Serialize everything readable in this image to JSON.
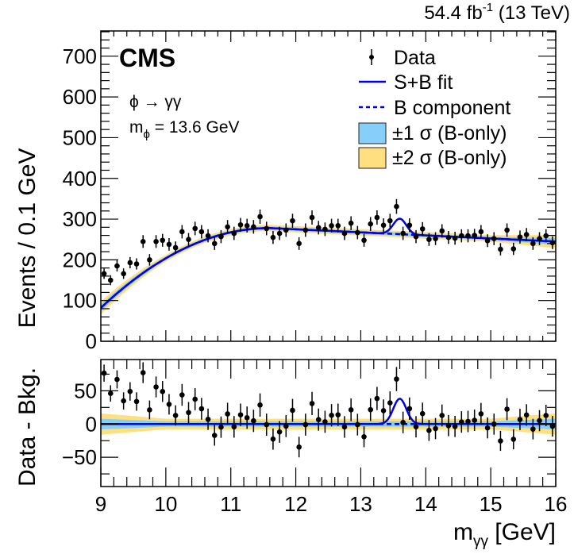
{
  "chart_data": [
    {
      "type": "scatter",
      "panel": "main",
      "title": "",
      "xlabel": "m_γγ [GeV]",
      "ylabel": "Events / 0.1 GeV",
      "xlim": [
        9,
        16
      ],
      "ylim": [
        0,
        762
      ],
      "yticks": [
        0,
        100,
        200,
        300,
        400,
        500,
        600,
        700
      ],
      "ytick_labels": [
        "0",
        "100",
        "200",
        "300",
        "400",
        "500",
        "600",
        "700"
      ],
      "grid": false,
      "legend_position": "top-right",
      "legend": [
        {
          "label": "Data",
          "kind": "marker"
        },
        {
          "label": "S+B fit",
          "kind": "solid-line"
        },
        {
          "label": "B component",
          "kind": "dashed-line"
        },
        {
          "label": "±1 σ (B-only)",
          "kind": "box"
        },
        {
          "label": "±2 σ (B-only)",
          "kind": "box"
        }
      ],
      "annotations": {
        "experiment": "CMS",
        "process": "ϕ → γγ",
        "mass_label": "m",
        "mass_sub": "ϕ",
        "mass_value": " = 13.6 GeV",
        "lumi_main": "54.4 fb",
        "lumi_sup": "-1",
        "lumi_energy": " (13 TeV)"
      },
      "x": [
        9.05,
        9.15,
        9.25,
        9.35,
        9.45,
        9.55,
        9.65,
        9.75,
        9.85,
        9.95,
        10.05,
        10.15,
        10.25,
        10.35,
        10.45,
        10.55,
        10.65,
        10.75,
        10.85,
        10.95,
        11.05,
        11.15,
        11.25,
        11.35,
        11.45,
        11.55,
        11.65,
        11.75,
        11.85,
        11.95,
        12.05,
        12.15,
        12.25,
        12.35,
        12.45,
        12.55,
        12.65,
        12.75,
        12.85,
        12.95,
        13.05,
        13.15,
        13.25,
        13.35,
        13.45,
        13.55,
        13.65,
        13.75,
        13.85,
        13.95,
        14.05,
        14.15,
        14.25,
        14.35,
        14.45,
        14.55,
        14.65,
        14.75,
        14.85,
        14.95,
        15.05,
        15.15,
        15.25,
        15.35,
        15.45,
        15.55,
        15.65,
        15.75,
        15.85,
        15.95
      ],
      "series": [
        {
          "name": "Data",
          "values": [
            166,
            150,
            185,
            166,
            193,
            190,
            245,
            200,
            245,
            248,
            238,
            230,
            269,
            250,
            277,
            269,
            259,
            240,
            257,
            281,
            265,
            286,
            284,
            281,
            306,
            277,
            255,
            265,
            273,
            296,
            240,
            273,
            304,
            279,
            275,
            284,
            284,
            265,
            290,
            267,
            248,
            288,
            304,
            285,
            296,
            331,
            265,
            285,
            257,
            276,
            250,
            252,
            271,
            255,
            253,
            259,
            259,
            260,
            269,
            247,
            252,
            226,
            273,
            227,
            256,
            262,
            240,
            252,
            259,
            242
          ]
        },
        {
          "name": "B component",
          "params": {
            "a": 278,
            "x0": 11.6,
            "k_left": 29,
            "slope_right": -7.5
          }
        },
        {
          "name": "S+B fit",
          "signal": {
            "mean": 13.6,
            "sigma": 0.1,
            "amplitude": 38
          }
        }
      ],
      "band_halfwidth": {
        "one_sigma": 4,
        "two_sigma": 8,
        "edge_two_sigma": 16
      }
    },
    {
      "type": "scatter",
      "panel": "ratio",
      "xlabel": "m_γγ [GeV]",
      "ylabel": "Data - Bkg.",
      "xlim": [
        9,
        16
      ],
      "ylim": [
        -94,
        97
      ],
      "yticks": [
        -50,
        0,
        50
      ],
      "ytick_labels": [
        "−50",
        "0",
        "50"
      ],
      "xticks": [
        9,
        10,
        11,
        12,
        13,
        14,
        15,
        16
      ],
      "xtick_labels": [
        "9",
        "10",
        "11",
        "12",
        "13",
        "14",
        "15",
        "16"
      ],
      "grid": false
    }
  ]
}
